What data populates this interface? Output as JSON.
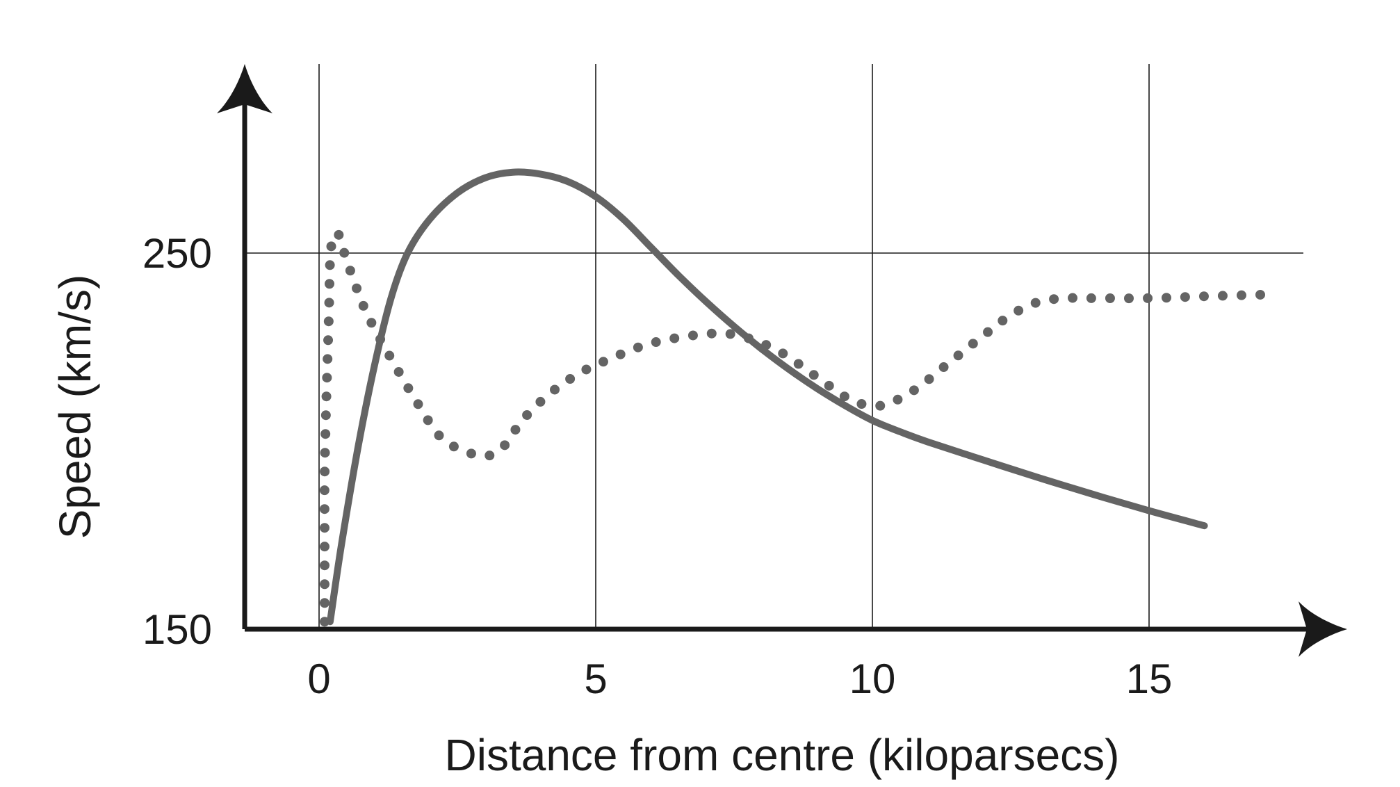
{
  "chart_data": {
    "type": "line",
    "title": "",
    "xlabel": "Distance from centre (kiloparsecs)",
    "ylabel": "Speed (km/s)",
    "xlim": [
      0,
      17.5
    ],
    "ylim": [
      150,
      300
    ],
    "x_ticks": [
      {
        "value": 0,
        "label": "0"
      },
      {
        "value": 5,
        "label": "5"
      },
      {
        "value": 10,
        "label": "10"
      },
      {
        "value": 15,
        "label": "15"
      }
    ],
    "y_ticks": [
      {
        "value": 150,
        "label": "150"
      },
      {
        "value": 250,
        "label": "250"
      }
    ],
    "grid": {
      "vertical_at": [
        0,
        5,
        10,
        15
      ],
      "horizontal_at": [
        250
      ]
    },
    "legend": "none",
    "series": [
      {
        "style": "solid",
        "color": "#646464",
        "points": [
          [
            0.2,
            152
          ],
          [
            0.4,
            172
          ],
          [
            0.7,
            198
          ],
          [
            1.0,
            220
          ],
          [
            1.3,
            238
          ],
          [
            1.6,
            250
          ],
          [
            2.0,
            259
          ],
          [
            2.5,
            266
          ],
          [
            3.0,
            270
          ],
          [
            3.5,
            271.5
          ],
          [
            4.0,
            271
          ],
          [
            4.5,
            269
          ],
          [
            5.0,
            265
          ],
          [
            5.5,
            259
          ],
          [
            6.0,
            251.5
          ],
          [
            6.5,
            244
          ],
          [
            7.0,
            237
          ],
          [
            7.5,
            230.5
          ],
          [
            8.0,
            224.5
          ],
          [
            8.5,
            219
          ],
          [
            9.0,
            214
          ],
          [
            9.5,
            209.5
          ],
          [
            10.0,
            205.5
          ],
          [
            10.5,
            202.5
          ],
          [
            11.0,
            199.8
          ],
          [
            12.0,
            195
          ],
          [
            13.0,
            190.3
          ],
          [
            14.0,
            185.8
          ],
          [
            15.0,
            181.5
          ],
          [
            16.0,
            177.5
          ]
        ]
      },
      {
        "style": "dotted",
        "color": "#646464",
        "points": [
          [
            0.1,
            152
          ],
          [
            0.1,
            160
          ],
          [
            0.1,
            175
          ],
          [
            0.1,
            190
          ],
          [
            0.12,
            205
          ],
          [
            0.15,
            220
          ],
          [
            0.18,
            235
          ],
          [
            0.2,
            248
          ],
          [
            0.25,
            254
          ],
          [
            0.35,
            255
          ],
          [
            0.5,
            248
          ],
          [
            0.8,
            236
          ],
          [
            1.0,
            230
          ],
          [
            1.3,
            222
          ],
          [
            1.7,
            212
          ],
          [
            2.2,
            201
          ],
          [
            2.7,
            197
          ],
          [
            3.0,
            196
          ],
          [
            3.3,
            198
          ],
          [
            3.7,
            206
          ],
          [
            4.2,
            213
          ],
          [
            4.7,
            218
          ],
          [
            5.2,
            221.5
          ],
          [
            6.0,
            226
          ],
          [
            7.0,
            228.5
          ],
          [
            7.6,
            228
          ],
          [
            8.3,
            224
          ],
          [
            9.0,
            217
          ],
          [
            9.6,
            211
          ],
          [
            10.0,
            209.5
          ],
          [
            10.3,
            210
          ],
          [
            10.8,
            214
          ],
          [
            11.4,
            221
          ],
          [
            12.0,
            228
          ],
          [
            12.5,
            233.5
          ],
          [
            13.0,
            237
          ],
          [
            13.5,
            238
          ],
          [
            14.0,
            238
          ],
          [
            15.0,
            238
          ],
          [
            16.0,
            238.5
          ],
          [
            17.2,
            239
          ]
        ]
      }
    ]
  }
}
